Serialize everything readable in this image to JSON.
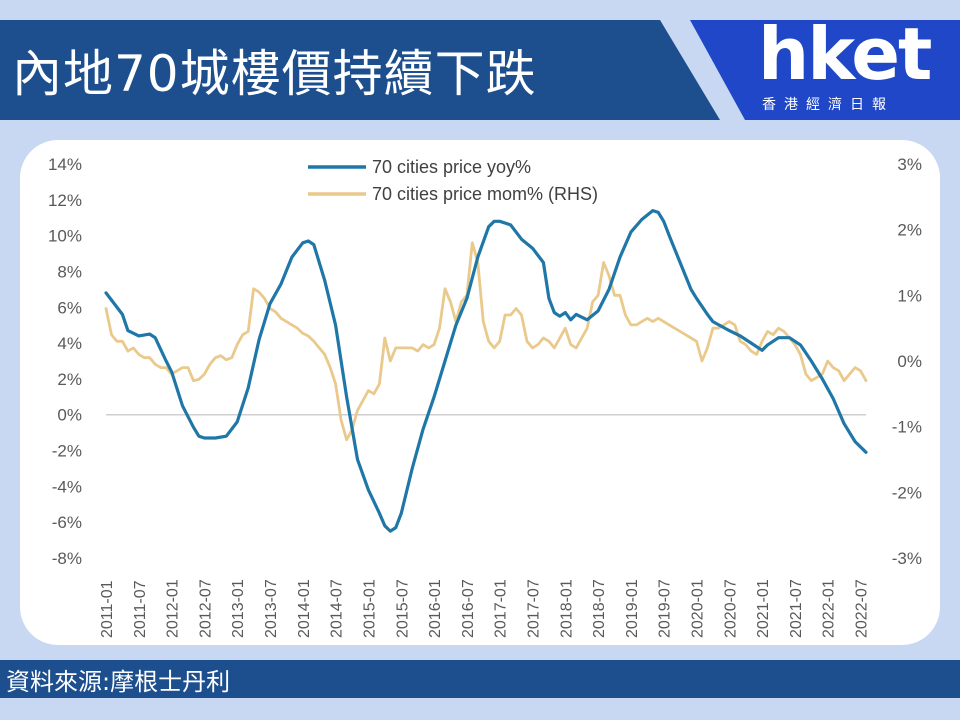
{
  "header": {
    "title": "內地70城樓價持續下跌"
  },
  "logo": {
    "word": "hket",
    "subtitle": "香港經濟日報"
  },
  "footer": {
    "source": "資料來源:摩根士丹利"
  },
  "colors": {
    "yoy": "#1f77a8",
    "mom": "#e9c98c",
    "header_bg": "#1d4f8e",
    "logo_bg": "#1f47c8",
    "page_bg": "#c9d8f2"
  },
  "chart_data": {
    "type": "line",
    "title": "",
    "x_ticks": [
      "2011-01",
      "2011-07",
      "2012-01",
      "2012-07",
      "2013-01",
      "2013-07",
      "2014-01",
      "2014-07",
      "2015-01",
      "2015-07",
      "2016-01",
      "2016-07",
      "2017-01",
      "2017-07",
      "2018-01",
      "2018-07",
      "2019-01",
      "2019-07",
      "2020-01",
      "2020-07",
      "2021-01",
      "2021-07",
      "2022-01",
      "2022-07"
    ],
    "y_left": {
      "ticks": [
        "14%",
        "12%",
        "10%",
        "8%",
        "6%",
        "4%",
        "2%",
        "0%",
        "-2%",
        "-4%",
        "-6%",
        "-8%"
      ],
      "range": [
        -8,
        14
      ]
    },
    "y_right": {
      "ticks": [
        "3%",
        "2%",
        "1%",
        "0%",
        "-1%",
        "-2%",
        "-3%"
      ],
      "range": [
        -3,
        3
      ]
    },
    "grid": false,
    "zero_line": true,
    "legend_position": "top-center",
    "series": [
      {
        "name": "70 cities price yoy%",
        "axis": "left",
        "color": "#1f77a8",
        "points": [
          [
            "2011-01",
            6.8
          ],
          [
            "2011-04",
            5.6
          ],
          [
            "2011-05",
            4.7
          ],
          [
            "2011-07",
            4.4
          ],
          [
            "2011-09",
            4.5
          ],
          [
            "2011-10",
            4.3
          ],
          [
            "2011-12",
            3.0
          ],
          [
            "2012-01",
            2.4
          ],
          [
            "2012-03",
            0.5
          ],
          [
            "2012-05",
            -0.7
          ],
          [
            "2012-06",
            -1.2
          ],
          [
            "2012-07",
            -1.3
          ],
          [
            "2012-09",
            -1.3
          ],
          [
            "2012-11",
            -1.2
          ],
          [
            "2013-01",
            -0.4
          ],
          [
            "2013-03",
            1.5
          ],
          [
            "2013-05",
            4.2
          ],
          [
            "2013-07",
            6.2
          ],
          [
            "2013-09",
            7.3
          ],
          [
            "2013-11",
            8.8
          ],
          [
            "2014-01",
            9.6
          ],
          [
            "2014-02",
            9.7
          ],
          [
            "2014-03",
            9.5
          ],
          [
            "2014-05",
            7.5
          ],
          [
            "2014-07",
            5.0
          ],
          [
            "2014-09",
            1.0
          ],
          [
            "2014-11",
            -2.5
          ],
          [
            "2015-01",
            -4.2
          ],
          [
            "2015-03",
            -5.5
          ],
          [
            "2015-04",
            -6.2
          ],
          [
            "2015-05",
            -6.5
          ],
          [
            "2015-06",
            -6.3
          ],
          [
            "2015-07",
            -5.5
          ],
          [
            "2015-09",
            -3.0
          ],
          [
            "2015-11",
            -0.8
          ],
          [
            "2016-01",
            1.0
          ],
          [
            "2016-03",
            3.0
          ],
          [
            "2016-05",
            5.0
          ],
          [
            "2016-07",
            6.5
          ],
          [
            "2016-09",
            8.8
          ],
          [
            "2016-11",
            10.5
          ],
          [
            "2016-12",
            10.8
          ],
          [
            "2017-01",
            10.8
          ],
          [
            "2017-03",
            10.6
          ],
          [
            "2017-05",
            9.8
          ],
          [
            "2017-07",
            9.3
          ],
          [
            "2017-09",
            8.5
          ],
          [
            "2017-10",
            6.5
          ],
          [
            "2017-11",
            5.7
          ],
          [
            "2017-12",
            5.5
          ],
          [
            "2018-01",
            5.7
          ],
          [
            "2018-02",
            5.3
          ],
          [
            "2018-03",
            5.6
          ],
          [
            "2018-05",
            5.3
          ],
          [
            "2018-07",
            5.8
          ],
          [
            "2018-09",
            7.0
          ],
          [
            "2018-11",
            8.8
          ],
          [
            "2019-01",
            10.2
          ],
          [
            "2019-03",
            10.9
          ],
          [
            "2019-05",
            11.4
          ],
          [
            "2019-06",
            11.3
          ],
          [
            "2019-07",
            10.8
          ],
          [
            "2019-08",
            10.0
          ],
          [
            "2019-10",
            8.5
          ],
          [
            "2019-12",
            7.0
          ],
          [
            "2020-01",
            6.5
          ],
          [
            "2020-03",
            5.6
          ],
          [
            "2020-04",
            5.2
          ],
          [
            "2020-07",
            4.7
          ],
          [
            "2020-09",
            4.4
          ],
          [
            "2020-11",
            4.0
          ],
          [
            "2021-01",
            3.6
          ],
          [
            "2021-02",
            3.9
          ],
          [
            "2021-04",
            4.3
          ],
          [
            "2021-06",
            4.3
          ],
          [
            "2021-08",
            3.9
          ],
          [
            "2021-10",
            3.0
          ],
          [
            "2021-12",
            2.0
          ],
          [
            "2022-02",
            0.9
          ],
          [
            "2022-04",
            -0.5
          ],
          [
            "2022-06",
            -1.5
          ],
          [
            "2022-08",
            -2.1
          ]
        ]
      },
      {
        "name": "70 cities price mom% (RHS)",
        "axis": "right",
        "color": "#e9c98c",
        "points": [
          [
            "2011-01",
            0.8
          ],
          [
            "2011-02",
            0.4
          ],
          [
            "2011-03",
            0.3
          ],
          [
            "2011-04",
            0.3
          ],
          [
            "2011-05",
            0.15
          ],
          [
            "2011-06",
            0.2
          ],
          [
            "2011-07",
            0.1
          ],
          [
            "2011-08",
            0.05
          ],
          [
            "2011-09",
            0.05
          ],
          [
            "2011-10",
            -0.05
          ],
          [
            "2011-11",
            -0.1
          ],
          [
            "2011-12",
            -0.1
          ],
          [
            "2012-01",
            -0.2
          ],
          [
            "2012-02",
            -0.15
          ],
          [
            "2012-03",
            -0.1
          ],
          [
            "2012-04",
            -0.1
          ],
          [
            "2012-05",
            -0.3
          ],
          [
            "2012-06",
            -0.28
          ],
          [
            "2012-07",
            -0.2
          ],
          [
            "2012-08",
            -0.05
          ],
          [
            "2012-09",
            0.05
          ],
          [
            "2012-10",
            0.08
          ],
          [
            "2012-11",
            0.02
          ],
          [
            "2012-12",
            0.05
          ],
          [
            "2013-01",
            0.25
          ],
          [
            "2013-02",
            0.4
          ],
          [
            "2013-03",
            0.45
          ],
          [
            "2013-04",
            1.1
          ],
          [
            "2013-05",
            1.05
          ],
          [
            "2013-06",
            0.95
          ],
          [
            "2013-07",
            0.8
          ],
          [
            "2013-08",
            0.75
          ],
          [
            "2013-09",
            0.65
          ],
          [
            "2013-10",
            0.6
          ],
          [
            "2013-11",
            0.55
          ],
          [
            "2013-12",
            0.5
          ],
          [
            "2014-01",
            0.42
          ],
          [
            "2014-02",
            0.38
          ],
          [
            "2014-03",
            0.3
          ],
          [
            "2014-04",
            0.2
          ],
          [
            "2014-05",
            0.1
          ],
          [
            "2014-06",
            -0.1
          ],
          [
            "2014-07",
            -0.35
          ],
          [
            "2014-08",
            -0.9
          ],
          [
            "2014-09",
            -1.2
          ],
          [
            "2014-10",
            -1.05
          ],
          [
            "2014-11",
            -0.75
          ],
          [
            "2014-12",
            -0.6
          ],
          [
            "2015-01",
            -0.45
          ],
          [
            "2015-02",
            -0.5
          ],
          [
            "2015-03",
            -0.35
          ],
          [
            "2015-04",
            0.35
          ],
          [
            "2015-05",
            0.0
          ],
          [
            "2015-06",
            0.2
          ],
          [
            "2015-07",
            0.2
          ],
          [
            "2015-08",
            0.2
          ],
          [
            "2015-09",
            0.2
          ],
          [
            "2015-10",
            0.15
          ],
          [
            "2015-11",
            0.25
          ],
          [
            "2015-12",
            0.2
          ],
          [
            "2016-01",
            0.25
          ],
          [
            "2016-02",
            0.5
          ],
          [
            "2016-03",
            1.1
          ],
          [
            "2016-04",
            0.9
          ],
          [
            "2016-05",
            0.6
          ],
          [
            "2016-06",
            0.9
          ],
          [
            "2016-07",
            1.0
          ],
          [
            "2016-08",
            1.8
          ],
          [
            "2016-09",
            1.5
          ],
          [
            "2016-10",
            0.6
          ],
          [
            "2016-11",
            0.3
          ],
          [
            "2016-12",
            0.2
          ],
          [
            "2017-01",
            0.3
          ],
          [
            "2017-02",
            0.7
          ],
          [
            "2017-03",
            0.7
          ],
          [
            "2017-04",
            0.8
          ],
          [
            "2017-05",
            0.7
          ],
          [
            "2017-06",
            0.3
          ],
          [
            "2017-07",
            0.2
          ],
          [
            "2017-08",
            0.25
          ],
          [
            "2017-09",
            0.35
          ],
          [
            "2017-10",
            0.3
          ],
          [
            "2017-11",
            0.2
          ],
          [
            "2017-12",
            0.35
          ],
          [
            "2018-01",
            0.5
          ],
          [
            "2018-02",
            0.25
          ],
          [
            "2018-03",
            0.2
          ],
          [
            "2018-04",
            0.35
          ],
          [
            "2018-05",
            0.5
          ],
          [
            "2018-06",
            0.9
          ],
          [
            "2018-07",
            1.0
          ],
          [
            "2018-08",
            1.5
          ],
          [
            "2018-09",
            1.3
          ],
          [
            "2018-10",
            1.0
          ],
          [
            "2018-11",
            1.0
          ],
          [
            "2018-12",
            0.7
          ],
          [
            "2019-01",
            0.55
          ],
          [
            "2019-02",
            0.55
          ],
          [
            "2019-03",
            0.6
          ],
          [
            "2019-04",
            0.65
          ],
          [
            "2019-05",
            0.6
          ],
          [
            "2019-06",
            0.65
          ],
          [
            "2019-07",
            0.6
          ],
          [
            "2019-08",
            0.55
          ],
          [
            "2019-09",
            0.5
          ],
          [
            "2019-10",
            0.45
          ],
          [
            "2019-11",
            0.4
          ],
          [
            "2019-12",
            0.35
          ],
          [
            "2020-01",
            0.3
          ],
          [
            "2020-02",
            0.0
          ],
          [
            "2020-03",
            0.2
          ],
          [
            "2020-04",
            0.5
          ],
          [
            "2020-05",
            0.5
          ],
          [
            "2020-06",
            0.55
          ],
          [
            "2020-07",
            0.6
          ],
          [
            "2020-08",
            0.55
          ],
          [
            "2020-09",
            0.3
          ],
          [
            "2020-10",
            0.25
          ],
          [
            "2020-11",
            0.15
          ],
          [
            "2020-12",
            0.1
          ],
          [
            "2021-01",
            0.3
          ],
          [
            "2021-02",
            0.45
          ],
          [
            "2021-03",
            0.4
          ],
          [
            "2021-04",
            0.5
          ],
          [
            "2021-05",
            0.45
          ],
          [
            "2021-06",
            0.35
          ],
          [
            "2021-07",
            0.25
          ],
          [
            "2021-08",
            0.1
          ],
          [
            "2021-09",
            -0.2
          ],
          [
            "2021-10",
            -0.3
          ],
          [
            "2021-11",
            -0.25
          ],
          [
            "2021-12",
            -0.2
          ],
          [
            "2022-01",
            0.0
          ],
          [
            "2022-02",
            -0.1
          ],
          [
            "2022-03",
            -0.15
          ],
          [
            "2022-04",
            -0.3
          ],
          [
            "2022-05",
            -0.2
          ],
          [
            "2022-06",
            -0.1
          ],
          [
            "2022-07",
            -0.15
          ],
          [
            "2022-08",
            -0.3
          ]
        ]
      }
    ]
  }
}
